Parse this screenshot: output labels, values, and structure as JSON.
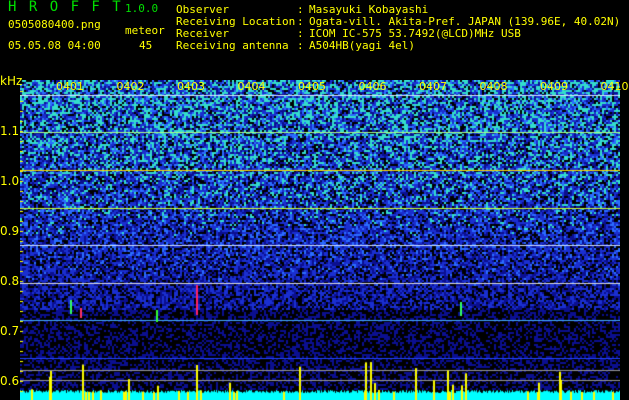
{
  "app": {
    "title": "H R O F F T",
    "version": "1.0.0"
  },
  "file": {
    "name": "0505080400.png",
    "datetime": "05.05.08 04:00"
  },
  "meteor": {
    "label": "meteor",
    "count": "45"
  },
  "info": [
    {
      "label": "Observer",
      "value": "Masayuki Kobayashi"
    },
    {
      "label": "Receiving Location",
      "value": "Ogata-vill. Akita-Pref. JAPAN (139.96E, 40.02N)"
    },
    {
      "label": "Receiver",
      "value": "ICOM IC-575 53.7492(@LCD)MHz USB"
    },
    {
      "label": "Receiving antenna",
      "value": "A504HB(yagi 4el)"
    }
  ],
  "axis": {
    "unit": "kHz",
    "y_ticks": [
      "1.1",
      "1.0",
      "0.9",
      "0.8",
      "0.7",
      "0.6"
    ],
    "x_ticks": [
      "0401",
      "0402",
      "0403",
      "0404",
      "0405",
      "0406",
      "0407",
      "0408",
      "0409",
      "0410"
    ]
  },
  "colors": {
    "text": "#ffff00",
    "title": "#00e000",
    "noise_floor": "#00ffff"
  }
}
